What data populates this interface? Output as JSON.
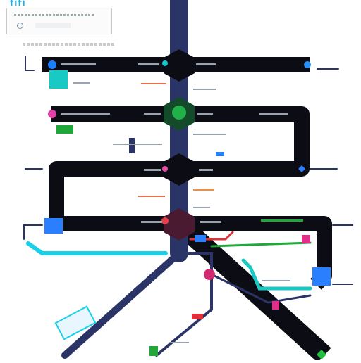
{
  "app": {
    "title": "fifi"
  },
  "search": {
    "placeholder": ""
  },
  "colors": {
    "track": "#0c0c14",
    "trunk": "#2a3466",
    "accent_blue": "#2a7fff",
    "accent_teal": "#19c9c4",
    "accent_green": "#21a83a",
    "accent_pink": "#e0308a",
    "accent_red": "#e0303a",
    "accent_cyan": "#1ad0e8"
  },
  "icons": {
    "search": "search-icon",
    "node": "circle-node-icon"
  },
  "stations": [
    {
      "name": "node-top-left",
      "shape": "circle",
      "color": "#1a7fff"
    },
    {
      "name": "node-top-center",
      "shape": "circle",
      "color": "#14c8d0"
    },
    {
      "name": "node-top-right",
      "shape": "circle",
      "color": "#2a8fff"
    },
    {
      "name": "node-mid-left",
      "shape": "circle",
      "color": "#e040a8"
    },
    {
      "name": "node-mid-center",
      "shape": "circle",
      "color": "#22b048"
    },
    {
      "name": "node-right-box",
      "shape": "diamond",
      "color": "#2a7fff"
    },
    {
      "name": "node-center-pink",
      "shape": "circle",
      "color": "#e04aa0"
    },
    {
      "name": "node-center-red",
      "shape": "circle",
      "color": "#e8404a"
    },
    {
      "name": "node-lower-pink",
      "shape": "circle",
      "color": "#d02a70"
    },
    {
      "name": "node-bottom-green",
      "shape": "diamond",
      "color": "#22c040"
    }
  ]
}
